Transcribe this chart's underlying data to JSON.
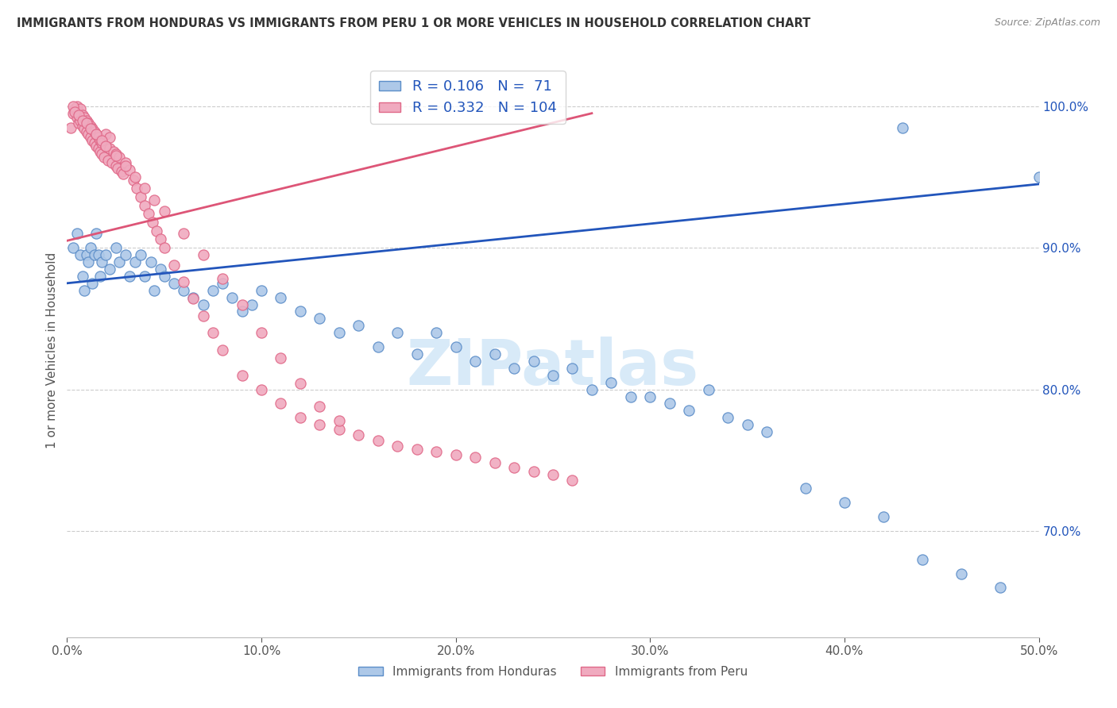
{
  "title": "IMMIGRANTS FROM HONDURAS VS IMMIGRANTS FROM PERU 1 OR MORE VEHICLES IN HOUSEHOLD CORRELATION CHART",
  "source": "Source: ZipAtlas.com",
  "ylabel": "1 or more Vehicles in Household",
  "blue_label": "Immigrants from Honduras",
  "pink_label": "Immigrants from Peru",
  "xlim": [
    0.0,
    0.5
  ],
  "ylim": [
    0.625,
    1.03
  ],
  "legend_blue_R": "R = 0.106",
  "legend_blue_N": "N =  71",
  "legend_pink_R": "R = 0.332",
  "legend_pink_N": "N = 104",
  "blue_face_color": "#adc8e8",
  "blue_edge_color": "#5b8dc8",
  "pink_face_color": "#f0aabf",
  "pink_edge_color": "#e06888",
  "blue_line_color": "#2255bb",
  "pink_line_color": "#dd5577",
  "legend_text_color": "#2255bb",
  "title_color": "#333333",
  "source_color": "#888888",
  "background_color": "#ffffff",
  "grid_color": "#cccccc",
  "watermark_color": "#d8eaf8",
  "blue_scatter_x": [
    0.003,
    0.005,
    0.007,
    0.008,
    0.009,
    0.01,
    0.011,
    0.012,
    0.013,
    0.014,
    0.015,
    0.016,
    0.017,
    0.018,
    0.02,
    0.022,
    0.025,
    0.027,
    0.03,
    0.032,
    0.035,
    0.038,
    0.04,
    0.043,
    0.045,
    0.048,
    0.05,
    0.055,
    0.06,
    0.065,
    0.07,
    0.075,
    0.08,
    0.085,
    0.09,
    0.095,
    0.1,
    0.11,
    0.12,
    0.13,
    0.14,
    0.15,
    0.16,
    0.17,
    0.18,
    0.19,
    0.2,
    0.21,
    0.22,
    0.23,
    0.24,
    0.25,
    0.26,
    0.27,
    0.28,
    0.29,
    0.3,
    0.31,
    0.32,
    0.33,
    0.34,
    0.35,
    0.36,
    0.38,
    0.4,
    0.42,
    0.44,
    0.46,
    0.48,
    0.5,
    0.43
  ],
  "blue_scatter_y": [
    0.9,
    0.91,
    0.895,
    0.88,
    0.87,
    0.895,
    0.89,
    0.9,
    0.875,
    0.895,
    0.91,
    0.895,
    0.88,
    0.89,
    0.895,
    0.885,
    0.9,
    0.89,
    0.895,
    0.88,
    0.89,
    0.895,
    0.88,
    0.89,
    0.87,
    0.885,
    0.88,
    0.875,
    0.87,
    0.865,
    0.86,
    0.87,
    0.875,
    0.865,
    0.855,
    0.86,
    0.87,
    0.865,
    0.855,
    0.85,
    0.84,
    0.845,
    0.83,
    0.84,
    0.825,
    0.84,
    0.83,
    0.82,
    0.825,
    0.815,
    0.82,
    0.81,
    0.815,
    0.8,
    0.805,
    0.795,
    0.795,
    0.79,
    0.785,
    0.8,
    0.78,
    0.775,
    0.77,
    0.73,
    0.72,
    0.71,
    0.68,
    0.67,
    0.66,
    0.95,
    0.985
  ],
  "pink_scatter_x": [
    0.002,
    0.003,
    0.004,
    0.005,
    0.005,
    0.006,
    0.006,
    0.007,
    0.007,
    0.008,
    0.008,
    0.009,
    0.009,
    0.01,
    0.01,
    0.011,
    0.011,
    0.012,
    0.012,
    0.013,
    0.013,
    0.014,
    0.014,
    0.015,
    0.015,
    0.016,
    0.016,
    0.017,
    0.017,
    0.018,
    0.018,
    0.019,
    0.02,
    0.02,
    0.021,
    0.022,
    0.022,
    0.023,
    0.024,
    0.025,
    0.025,
    0.026,
    0.027,
    0.028,
    0.029,
    0.03,
    0.032,
    0.034,
    0.036,
    0.038,
    0.04,
    0.042,
    0.044,
    0.046,
    0.048,
    0.05,
    0.055,
    0.06,
    0.065,
    0.07,
    0.075,
    0.08,
    0.09,
    0.1,
    0.11,
    0.12,
    0.13,
    0.14,
    0.15,
    0.16,
    0.17,
    0.18,
    0.19,
    0.2,
    0.21,
    0.22,
    0.23,
    0.24,
    0.25,
    0.26,
    0.003,
    0.004,
    0.006,
    0.008,
    0.01,
    0.012,
    0.015,
    0.018,
    0.02,
    0.025,
    0.03,
    0.035,
    0.04,
    0.045,
    0.05,
    0.06,
    0.07,
    0.08,
    0.09,
    0.1,
    0.11,
    0.12,
    0.13,
    0.14
  ],
  "pink_scatter_y": [
    0.985,
    0.995,
    0.998,
    0.992,
    1.0,
    0.988,
    0.996,
    0.99,
    0.998,
    0.986,
    0.994,
    0.984,
    0.992,
    0.982,
    0.99,
    0.98,
    0.988,
    0.978,
    0.986,
    0.976,
    0.984,
    0.974,
    0.982,
    0.972,
    0.98,
    0.97,
    0.978,
    0.968,
    0.976,
    0.966,
    0.974,
    0.964,
    0.972,
    0.98,
    0.962,
    0.97,
    0.978,
    0.96,
    0.968,
    0.958,
    0.966,
    0.956,
    0.964,
    0.954,
    0.952,
    0.96,
    0.955,
    0.948,
    0.942,
    0.936,
    0.93,
    0.924,
    0.918,
    0.912,
    0.906,
    0.9,
    0.888,
    0.876,
    0.864,
    0.852,
    0.84,
    0.828,
    0.81,
    0.8,
    0.79,
    0.78,
    0.775,
    0.772,
    0.768,
    0.764,
    0.76,
    0.758,
    0.756,
    0.754,
    0.752,
    0.748,
    0.745,
    0.742,
    0.74,
    0.736,
    1.0,
    0.996,
    0.994,
    0.99,
    0.988,
    0.984,
    0.98,
    0.976,
    0.972,
    0.965,
    0.958,
    0.95,
    0.942,
    0.934,
    0.926,
    0.91,
    0.895,
    0.878,
    0.86,
    0.84,
    0.822,
    0.804,
    0.788,
    0.778
  ],
  "blue_trend_x": [
    0.0,
    0.5
  ],
  "blue_trend_y": [
    0.875,
    0.945
  ],
  "pink_trend_x": [
    0.0,
    0.27
  ],
  "pink_trend_y": [
    0.905,
    0.995
  ]
}
